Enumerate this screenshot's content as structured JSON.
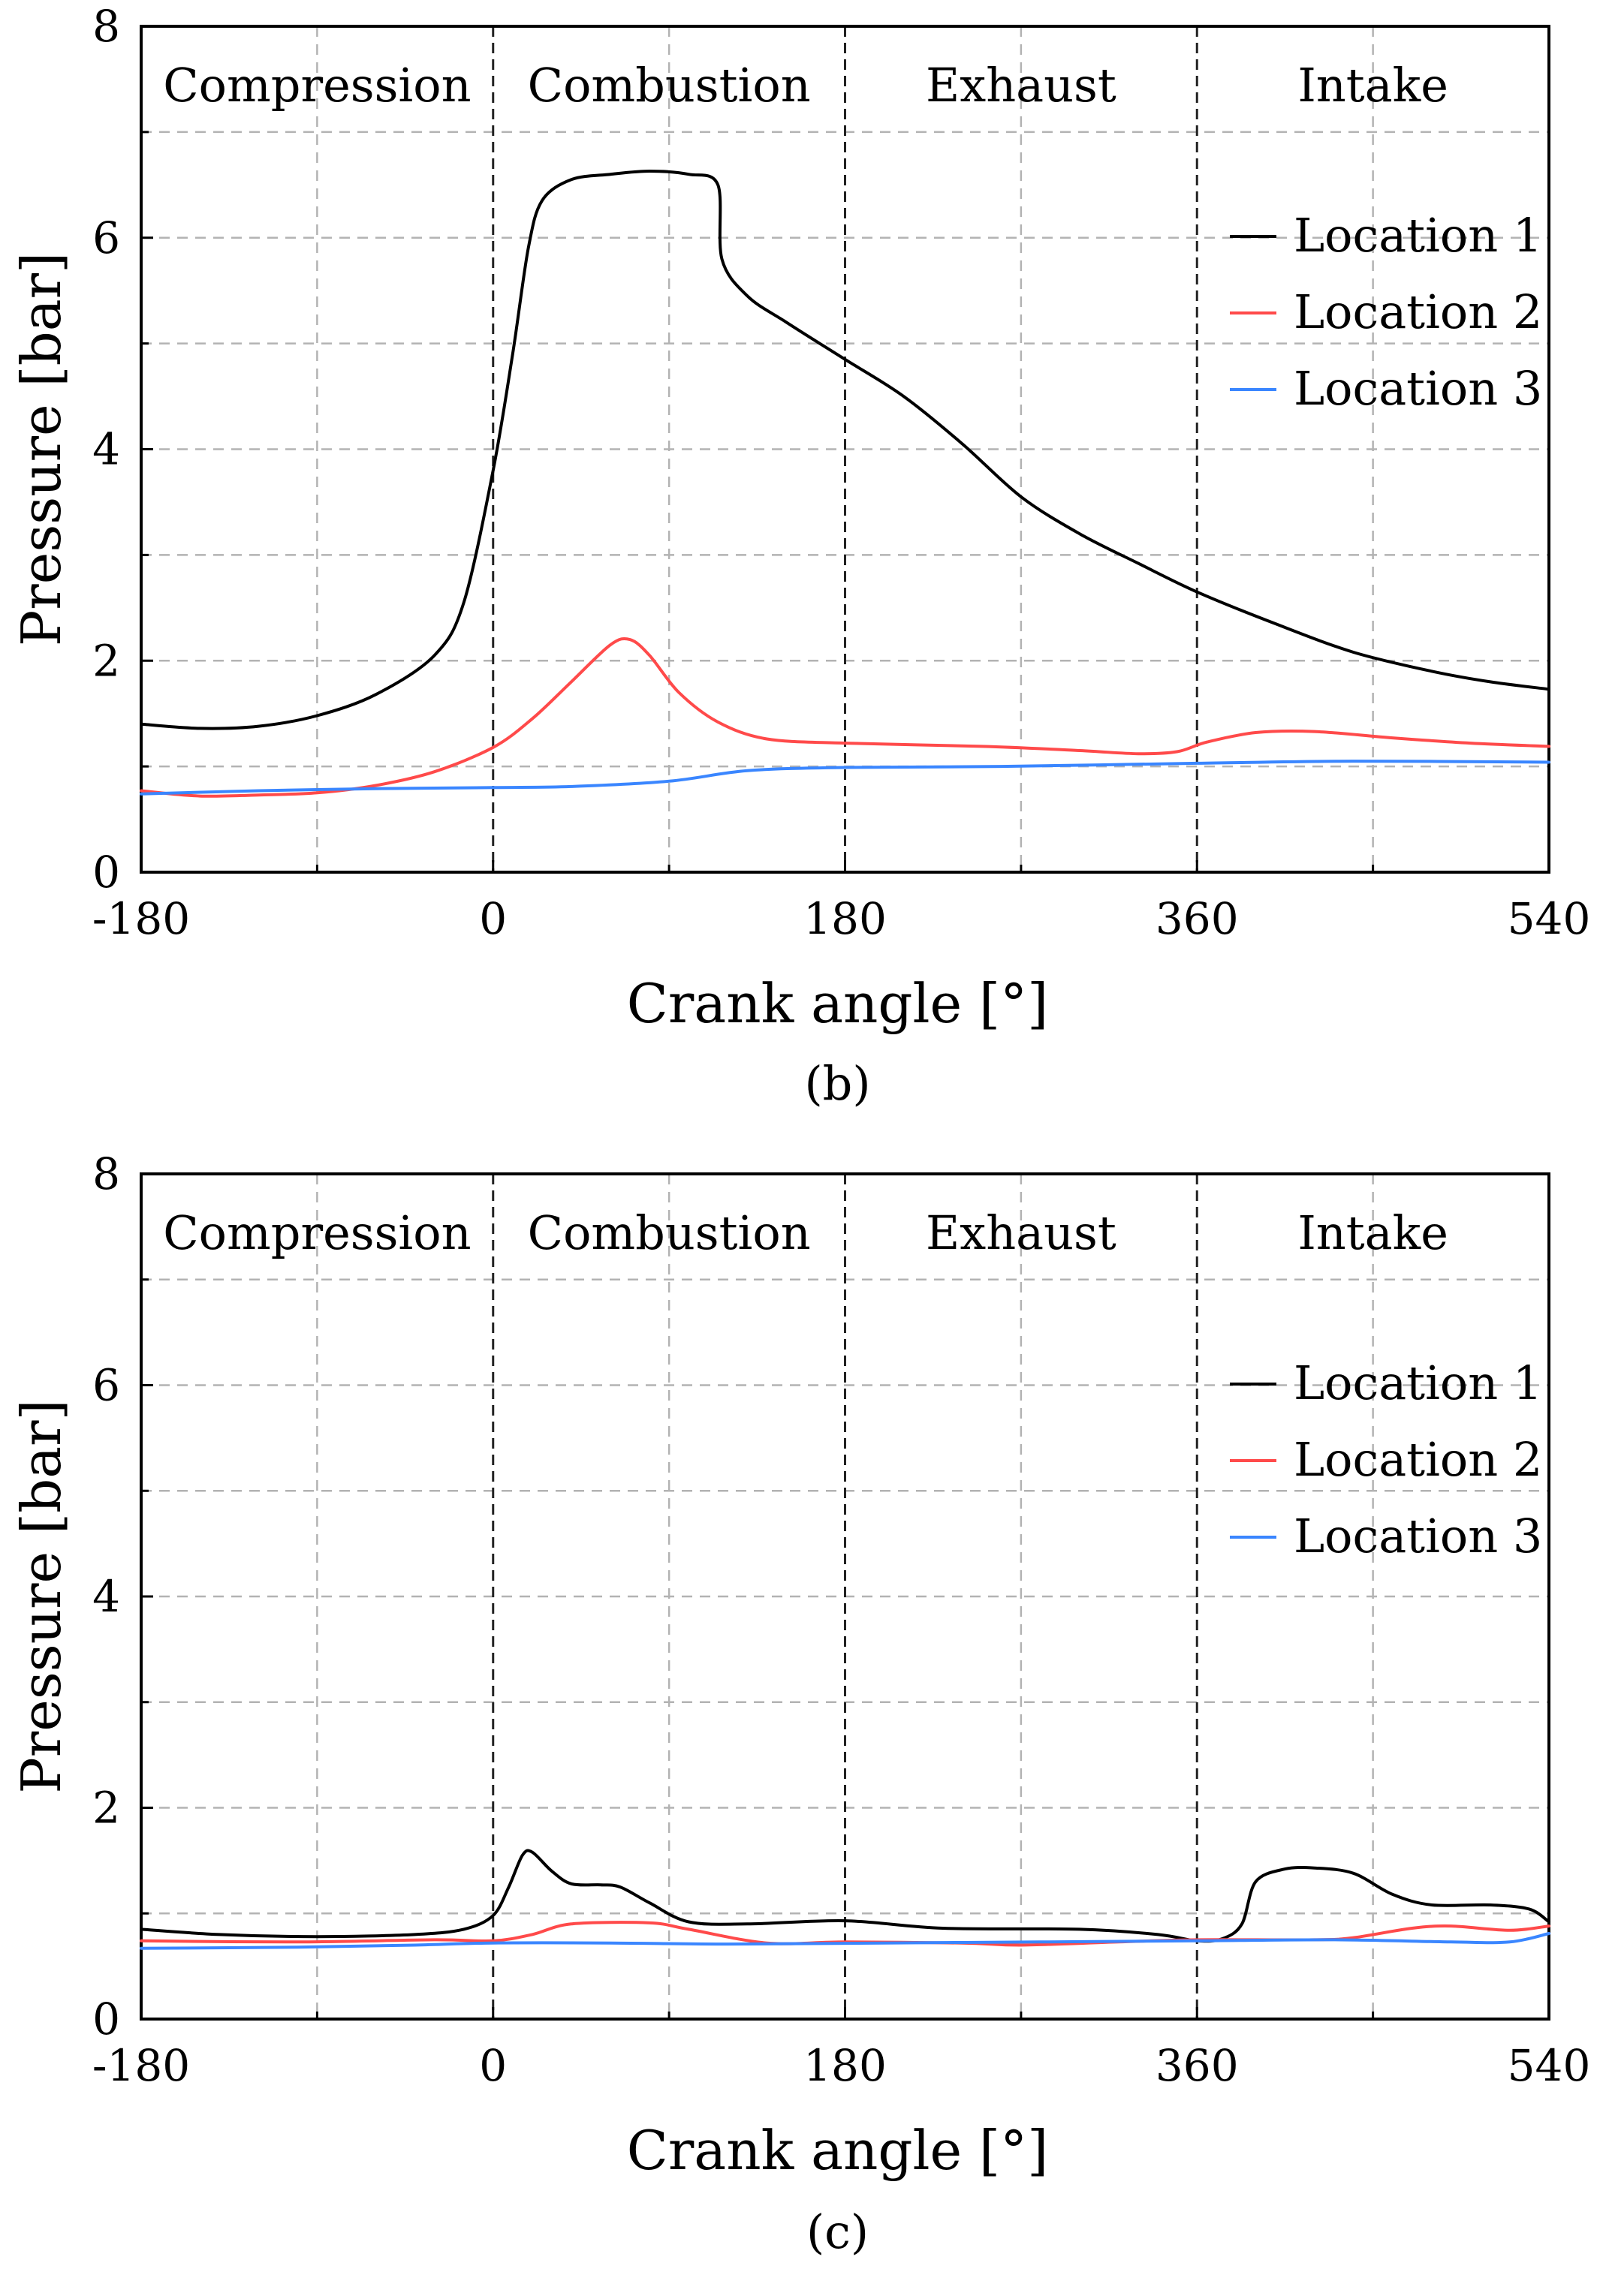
{
  "chart_data": [
    {
      "type": "line",
      "panel_label": "(b)",
      "xlabel": "Crank angle [°]",
      "ylabel": "Pressure [bar]",
      "xlim": [
        -180,
        540
      ],
      "ylim": [
        0,
        8
      ],
      "x_ticks": [
        -180,
        0,
        180,
        360,
        540
      ],
      "y_ticks": [
        0,
        2,
        4,
        6,
        8
      ],
      "grid": true,
      "legend_position": "right",
      "phases": [
        {
          "label": "Compression",
          "start": -180,
          "end": 0
        },
        {
          "label": "Combustion",
          "start": 0,
          "end": 180
        },
        {
          "label": "Exhaust",
          "start": 180,
          "end": 360
        },
        {
          "label": "Intake",
          "start": 360,
          "end": 540
        }
      ],
      "series": [
        {
          "name": "Location 1",
          "color": "#000000",
          "points": [
            [
              -180,
              1.4
            ],
            [
              -150,
              1.36
            ],
            [
              -120,
              1.38
            ],
            [
              -90,
              1.48
            ],
            [
              -60,
              1.68
            ],
            [
              -30,
              2.05
            ],
            [
              -15,
              2.55
            ],
            [
              0,
              3.8
            ],
            [
              10,
              4.9
            ],
            [
              18,
              5.9
            ],
            [
              25,
              6.35
            ],
            [
              40,
              6.55
            ],
            [
              60,
              6.6
            ],
            [
              80,
              6.63
            ],
            [
              100,
              6.6
            ],
            [
              115,
              6.5
            ],
            [
              117,
              5.8
            ],
            [
              130,
              5.45
            ],
            [
              150,
              5.2
            ],
            [
              180,
              4.85
            ],
            [
              210,
              4.5
            ],
            [
              240,
              4.05
            ],
            [
              270,
              3.55
            ],
            [
              300,
              3.2
            ],
            [
              330,
              2.92
            ],
            [
              360,
              2.65
            ],
            [
              400,
              2.35
            ],
            [
              440,
              2.08
            ],
            [
              480,
              1.9
            ],
            [
              510,
              1.8
            ],
            [
              540,
              1.73
            ]
          ]
        },
        {
          "name": "Location 2",
          "color": "#ff4a4a",
          "points": [
            [
              -180,
              0.77
            ],
            [
              -150,
              0.72
            ],
            [
              -120,
              0.73
            ],
            [
              -90,
              0.75
            ],
            [
              -60,
              0.82
            ],
            [
              -30,
              0.95
            ],
            [
              0,
              1.18
            ],
            [
              20,
              1.45
            ],
            [
              40,
              1.8
            ],
            [
              60,
              2.15
            ],
            [
              70,
              2.2
            ],
            [
              80,
              2.05
            ],
            [
              95,
              1.7
            ],
            [
              115,
              1.42
            ],
            [
              140,
              1.26
            ],
            [
              180,
              1.22
            ],
            [
              250,
              1.19
            ],
            [
              300,
              1.15
            ],
            [
              330,
              1.12
            ],
            [
              350,
              1.14
            ],
            [
              365,
              1.23
            ],
            [
              390,
              1.32
            ],
            [
              420,
              1.33
            ],
            [
              460,
              1.27
            ],
            [
              500,
              1.22
            ],
            [
              540,
              1.19
            ]
          ]
        },
        {
          "name": "Location 3",
          "color": "#3a86ff",
          "points": [
            [
              -180,
              0.74
            ],
            [
              -120,
              0.77
            ],
            [
              -60,
              0.79
            ],
            [
              0,
              0.8
            ],
            [
              40,
              0.81
            ],
            [
              90,
              0.86
            ],
            [
              130,
              0.96
            ],
            [
              180,
              0.99
            ],
            [
              260,
              1.0
            ],
            [
              360,
              1.03
            ],
            [
              440,
              1.05
            ],
            [
              540,
              1.04
            ]
          ]
        }
      ]
    },
    {
      "type": "line",
      "panel_label": "(c)",
      "xlabel": "Crank angle [°]",
      "ylabel": "Pressure [bar]",
      "xlim": [
        -180,
        540
      ],
      "ylim": [
        0,
        8
      ],
      "x_ticks": [
        -180,
        0,
        180,
        360,
        540
      ],
      "y_ticks": [
        0,
        2,
        4,
        6,
        8
      ],
      "grid": true,
      "legend_position": "right",
      "phases": [
        {
          "label": "Compression",
          "start": -180,
          "end": 0
        },
        {
          "label": "Combustion",
          "start": 0,
          "end": 180
        },
        {
          "label": "Exhaust",
          "start": 180,
          "end": 360
        },
        {
          "label": "Intake",
          "start": 360,
          "end": 540
        }
      ],
      "series": [
        {
          "name": "Location 1",
          "color": "#000000",
          "points": [
            [
              -180,
              0.85
            ],
            [
              -140,
              0.8
            ],
            [
              -90,
              0.78
            ],
            [
              -40,
              0.8
            ],
            [
              -15,
              0.85
            ],
            [
              0,
              0.98
            ],
            [
              8,
              1.25
            ],
            [
              15,
              1.55
            ],
            [
              20,
              1.58
            ],
            [
              30,
              1.4
            ],
            [
              40,
              1.28
            ],
            [
              55,
              1.27
            ],
            [
              65,
              1.25
            ],
            [
              80,
              1.1
            ],
            [
              100,
              0.92
            ],
            [
              130,
              0.9
            ],
            [
              180,
              0.93
            ],
            [
              230,
              0.86
            ],
            [
              300,
              0.85
            ],
            [
              340,
              0.8
            ],
            [
              360,
              0.74
            ],
            [
              373,
              0.76
            ],
            [
              383,
              0.9
            ],
            [
              390,
              1.3
            ],
            [
              405,
              1.42
            ],
            [
              420,
              1.43
            ],
            [
              440,
              1.38
            ],
            [
              460,
              1.18
            ],
            [
              480,
              1.08
            ],
            [
              510,
              1.08
            ],
            [
              530,
              1.04
            ],
            [
              540,
              0.92
            ]
          ]
        },
        {
          "name": "Location 2",
          "color": "#ff4a4a",
          "points": [
            [
              -180,
              0.74
            ],
            [
              -100,
              0.73
            ],
            [
              -30,
              0.75
            ],
            [
              0,
              0.74
            ],
            [
              20,
              0.8
            ],
            [
              40,
              0.9
            ],
            [
              80,
              0.91
            ],
            [
              100,
              0.85
            ],
            [
              140,
              0.72
            ],
            [
              180,
              0.73
            ],
            [
              240,
              0.72
            ],
            [
              270,
              0.7
            ],
            [
              320,
              0.73
            ],
            [
              360,
              0.75
            ],
            [
              420,
              0.75
            ],
            [
              440,
              0.77
            ],
            [
              470,
              0.86
            ],
            [
              490,
              0.88
            ],
            [
              520,
              0.84
            ],
            [
              540,
              0.88
            ]
          ]
        },
        {
          "name": "Location 3",
          "color": "#3a86ff",
          "points": [
            [
              -180,
              0.67
            ],
            [
              -100,
              0.68
            ],
            [
              -40,
              0.7
            ],
            [
              0,
              0.72
            ],
            [
              60,
              0.72
            ],
            [
              120,
              0.71
            ],
            [
              200,
              0.72
            ],
            [
              280,
              0.73
            ],
            [
              360,
              0.74
            ],
            [
              430,
              0.75
            ],
            [
              490,
              0.73
            ],
            [
              520,
              0.73
            ],
            [
              540,
              0.81
            ]
          ]
        }
      ]
    }
  ]
}
